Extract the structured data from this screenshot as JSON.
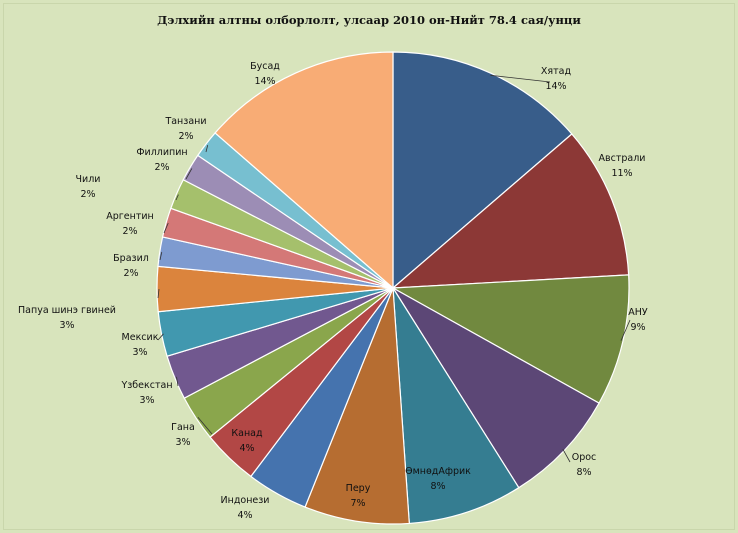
{
  "chart_data": {
    "type": "pie",
    "title": "Дэлхийн алтны олборлолт,  улсаар 2010 он-Нийт  78.4 сая/унци",
    "legend": "none",
    "slices": [
      {
        "label": "Хятад",
        "pct_label": "14%",
        "value": 14.3,
        "color": "#385d8a"
      },
      {
        "label": "Австрали",
        "pct_label": "11%",
        "value": 10.9,
        "color": "#8c3836"
      },
      {
        "label": "АНУ",
        "pct_label": "9%",
        "value": 9.4,
        "color": "#71893f"
      },
      {
        "label": "Орос",
        "pct_label": "8%",
        "value": 8.3,
        "color": "#5c4776"
      },
      {
        "label": "ӨмнөдАфрик",
        "pct_label": "8%",
        "value": 8.2,
        "color": "#357d91"
      },
      {
        "label": "Перу",
        "pct_label": "7%",
        "value": 7.5,
        "color": "#b66d31"
      },
      {
        "label": "Индонези",
        "pct_label": "4%",
        "value": 4.4,
        "color": "#4573ae"
      },
      {
        "label": "Канад",
        "pct_label": "4%",
        "value": 4.0,
        "color": "#b24745"
      },
      {
        "label": "Гана",
        "pct_label": "3%",
        "value": 3.3,
        "color": "#8aa64c"
      },
      {
        "label": "Үзбекстан",
        "pct_label": "3%",
        "value": 3.2,
        "color": "#71588f"
      },
      {
        "label": "Мексик",
        "pct_label": "3%",
        "value": 3.2,
        "color": "#4198af"
      },
      {
        "label": "Папуа шинэ гвиней",
        "pct_label": "3%",
        "value": 3.2,
        "color": "#db843d"
      },
      {
        "label": "Бразил",
        "pct_label": "2%",
        "value": 2.1,
        "color": "#7e9bd0"
      },
      {
        "label": "Аргентин",
        "pct_label": "2%",
        "value": 2.1,
        "color": "#d47877"
      },
      {
        "label": "Чили",
        "pct_label": "2%",
        "value": 2.2,
        "color": "#a5c06c"
      },
      {
        "label": "Филлипин",
        "pct_label": "2%",
        "value": 2.0,
        "color": "#9c8db5"
      },
      {
        "label": "Танзани",
        "pct_label": "2%",
        "value": 2.0,
        "color": "#77bfd0"
      },
      {
        "label": "Бусад",
        "pct_label": "14%",
        "value": 14.2,
        "color": "#f8ac75"
      }
    ]
  }
}
